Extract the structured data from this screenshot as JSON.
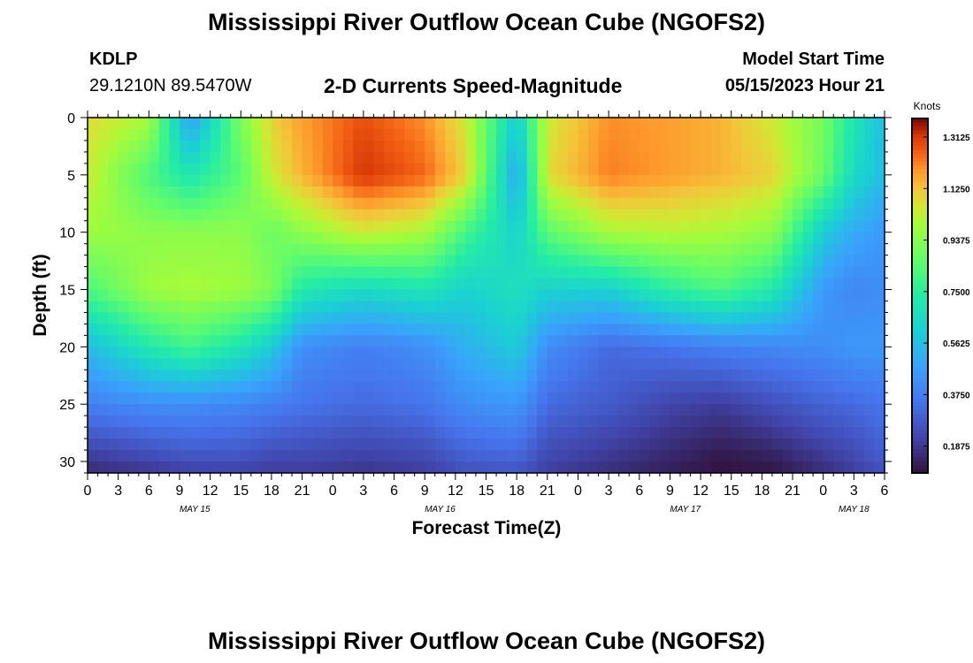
{
  "header": {
    "title": "Mississippi River Outflow Ocean Cube (NGOFS2)",
    "station_id": "KDLP",
    "station_coords": "29.1210N  89.5470W",
    "subtitle": "2-D Currents Speed-Magnitude",
    "model_start_label": "Model Start Time",
    "model_start_value": "05/15/2023 Hour 21"
  },
  "footer": {
    "title": "Mississippi River Outflow Ocean Cube (NGOFS2)"
  },
  "chart_data": {
    "type": "heatmap",
    "title": "2-D Currents Speed-Magnitude",
    "xlabel": "Forecast Time(Z)",
    "ylabel": "Depth (ft)",
    "x_start_hour": 0,
    "x_end_hour": 78,
    "x_tick_step_hours": 3,
    "x_tick_labels": [
      "0",
      "3",
      "6",
      "9",
      "12",
      "15",
      "18",
      "21",
      "0",
      "3",
      "6",
      "9",
      "12",
      "15",
      "18",
      "21",
      "0",
      "3",
      "6",
      "9",
      "12",
      "15",
      "18",
      "21",
      "0",
      "3",
      "6"
    ],
    "date_labels": [
      {
        "label": "MAY 15",
        "hour": 10.5
      },
      {
        "label": "MAY 16",
        "hour": 34.5
      },
      {
        "label": "MAY 17",
        "hour": 58.5
      },
      {
        "label": "MAY 18",
        "hour": 75
      }
    ],
    "ylim": [
      0,
      31
    ],
    "y_ticks": [
      0,
      5,
      10,
      15,
      20,
      25,
      30
    ],
    "colorbar": {
      "unit": "Knots",
      "vmin": 0.09,
      "vmax": 1.38,
      "ticks": [
        1.3125,
        1.125,
        0.9375,
        0.75,
        0.5625,
        0.375,
        0.1875
      ],
      "tick_labels": [
        "1.3125",
        "1.1250",
        "0.9375",
        "0.7500",
        "0.5625",
        "0.3750",
        "0.1875"
      ]
    },
    "speed_field_knots": {
      "hours": [
        0,
        6,
        10,
        15,
        18,
        21,
        27,
        33,
        37,
        42,
        45,
        51,
        57,
        62,
        67,
        72,
        75,
        78
      ],
      "depths": [
        0,
        5,
        10,
        15,
        20,
        25,
        30,
        31
      ],
      "values": [
        [
          1.08,
          1.0,
          0.45,
          0.92,
          1.1,
          1.18,
          1.28,
          1.2,
          1.05,
          0.6,
          1.05,
          1.2,
          1.18,
          1.15,
          1.05,
          0.9,
          0.7,
          0.55
        ],
        [
          1.05,
          0.82,
          0.7,
          0.85,
          1.05,
          1.15,
          1.32,
          1.25,
          1.1,
          0.48,
          1.08,
          1.22,
          1.18,
          1.15,
          1.1,
          0.88,
          0.65,
          0.55
        ],
        [
          0.98,
          0.95,
          0.95,
          0.95,
          0.88,
          0.95,
          1.05,
          1.0,
          0.8,
          0.62,
          0.85,
          1.0,
          1.02,
          1.0,
          0.95,
          0.6,
          0.5,
          0.45
        ],
        [
          0.82,
          0.98,
          1.0,
          0.98,
          0.92,
          0.72,
          0.65,
          0.7,
          0.62,
          0.68,
          0.62,
          0.62,
          0.75,
          0.82,
          0.72,
          0.45,
          0.4,
          0.42
        ],
        [
          0.55,
          0.72,
          0.8,
          0.7,
          0.6,
          0.42,
          0.38,
          0.42,
          0.52,
          0.6,
          0.42,
          0.32,
          0.35,
          0.38,
          0.4,
          0.42,
          0.45,
          0.45
        ],
        [
          0.38,
          0.42,
          0.42,
          0.4,
          0.38,
          0.35,
          0.32,
          0.35,
          0.42,
          0.45,
          0.32,
          0.28,
          0.22,
          0.2,
          0.25,
          0.3,
          0.32,
          0.35
        ],
        [
          0.18,
          0.22,
          0.25,
          0.25,
          0.22,
          0.22,
          0.2,
          0.22,
          0.28,
          0.3,
          0.22,
          0.18,
          0.14,
          0.1,
          0.12,
          0.18,
          0.22,
          0.28
        ],
        [
          0.15,
          0.18,
          0.2,
          0.2,
          0.2,
          0.2,
          0.18,
          0.2,
          0.25,
          0.26,
          0.2,
          0.16,
          0.12,
          0.1,
          0.1,
          0.16,
          0.2,
          0.24
        ]
      ]
    }
  }
}
